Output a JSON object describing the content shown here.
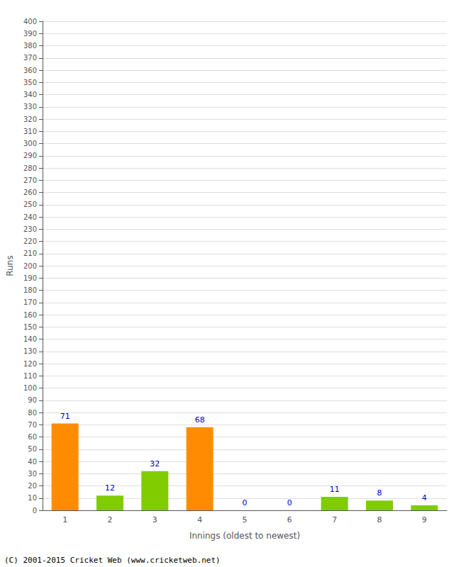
{
  "chart_data": {
    "type": "bar",
    "xlabel": "Innings (oldest to newest)",
    "ylabel": "Runs",
    "footer": "(C) 2001-2015 Cricket Web (www.cricketweb.net)",
    "categories": [
      "1",
      "2",
      "3",
      "4",
      "5",
      "6",
      "7",
      "8",
      "9"
    ],
    "values": [
      71,
      12,
      32,
      68,
      0,
      0,
      11,
      8,
      4
    ],
    "colors": [
      "#FF8C00",
      "#80CC00",
      "#80CC00",
      "#FF8C00",
      "#80CC00",
      "#80CC00",
      "#80CC00",
      "#80CC00",
      "#80CC00"
    ],
    "ylim": [
      0,
      400
    ],
    "yticks": [
      0,
      10,
      20,
      30,
      40,
      50,
      60,
      70,
      80,
      90,
      100,
      110,
      120,
      130,
      140,
      150,
      160,
      170,
      180,
      190,
      200,
      210,
      220,
      230,
      240,
      250,
      260,
      270,
      280,
      290,
      300,
      310,
      320,
      330,
      340,
      350,
      360,
      370,
      380,
      390,
      400
    ],
    "data_labels": true,
    "grid": true
  }
}
